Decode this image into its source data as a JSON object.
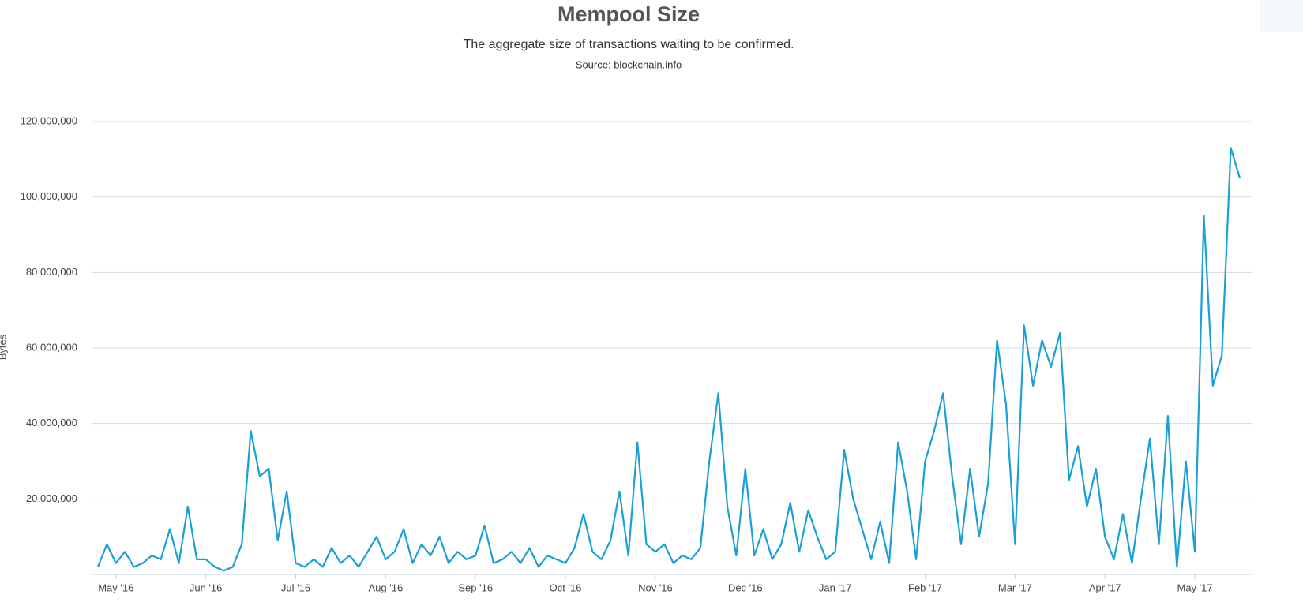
{
  "chart_data": {
    "type": "line",
    "title": "Mempool Size",
    "subtitle": "The aggregate size of transactions waiting to be confirmed.",
    "source": "Source: blockchain.info",
    "y_label": "Bytes",
    "categories": [
      null,
      null,
      "May '16",
      null,
      null,
      null,
      null,
      null,
      null,
      null,
      null,
      null,
      "Jun '16",
      null,
      null,
      null,
      null,
      null,
      null,
      null,
      null,
      null,
      "Jul '16",
      null,
      null,
      null,
      null,
      null,
      null,
      null,
      null,
      null,
      "Aug '16",
      null,
      null,
      null,
      null,
      null,
      null,
      null,
      null,
      null,
      "Sep '16",
      null,
      null,
      null,
      null,
      null,
      null,
      null,
      null,
      null,
      "Oct '16",
      null,
      null,
      null,
      null,
      null,
      null,
      null,
      null,
      null,
      "Nov '16",
      null,
      null,
      null,
      null,
      null,
      null,
      null,
      null,
      null,
      "Dec '16",
      null,
      null,
      null,
      null,
      null,
      null,
      null,
      null,
      null,
      "Jan '17",
      null,
      null,
      null,
      null,
      null,
      null,
      null,
      null,
      null,
      "Feb '17",
      null,
      null,
      null,
      null,
      null,
      null,
      null,
      null,
      null,
      "Mar '17",
      null,
      null,
      null,
      null,
      null,
      null,
      null,
      null,
      null,
      "Apr '17",
      null,
      null,
      null,
      null,
      null,
      null,
      null,
      null,
      null,
      "May '17",
      null,
      null,
      null,
      null,
      null
    ],
    "series": [
      {
        "name": "Mempool Size",
        "color": "#1a9fd6",
        "values": [
          2000000,
          8000000,
          3000000,
          6000000,
          2000000,
          3000000,
          5000000,
          4000000,
          12000000,
          3000000,
          18000000,
          4000000,
          4000000,
          2000000,
          1000000,
          2000000,
          8000000,
          38000000,
          26000000,
          28000000,
          9000000,
          22000000,
          3000000,
          2000000,
          4000000,
          2000000,
          7000000,
          3000000,
          5000000,
          2000000,
          6000000,
          10000000,
          4000000,
          6000000,
          12000000,
          3000000,
          8000000,
          5000000,
          10000000,
          3000000,
          6000000,
          4000000,
          5000000,
          13000000,
          3000000,
          4000000,
          6000000,
          3000000,
          7000000,
          2000000,
          5000000,
          4000000,
          3000000,
          7000000,
          16000000,
          6000000,
          4000000,
          9000000,
          22000000,
          5000000,
          35000000,
          8000000,
          6000000,
          8000000,
          3000000,
          5000000,
          4000000,
          7000000,
          30000000,
          48000000,
          18000000,
          5000000,
          28000000,
          5000000,
          12000000,
          4000000,
          8000000,
          19000000,
          6000000,
          17000000,
          10000000,
          4000000,
          6000000,
          33000000,
          20000000,
          12000000,
          4000000,
          14000000,
          3000000,
          35000000,
          22000000,
          4000000,
          30000000,
          38000000,
          48000000,
          26000000,
          8000000,
          28000000,
          10000000,
          24000000,
          62000000,
          45000000,
          8000000,
          66000000,
          50000000,
          62000000,
          55000000,
          64000000,
          25000000,
          34000000,
          18000000,
          28000000,
          10000000,
          4000000,
          16000000,
          3000000,
          20000000,
          36000000,
          8000000,
          42000000,
          2000000,
          30000000,
          6000000,
          95000000,
          50000000,
          58000000,
          113000000,
          105000000
        ]
      }
    ],
    "ylim": [
      0,
      120000000
    ],
    "yticks": [
      {
        "value": 20000000,
        "label": "20,000,000"
      },
      {
        "value": 40000000,
        "label": "40,000,000"
      },
      {
        "value": 60000000,
        "label": "60,000,000"
      },
      {
        "value": 80000000,
        "label": "80,000,000"
      },
      {
        "value": 100000000,
        "label": "100,000,000"
      },
      {
        "value": 120000000,
        "label": "120,000,000"
      }
    ],
    "grid": true
  }
}
